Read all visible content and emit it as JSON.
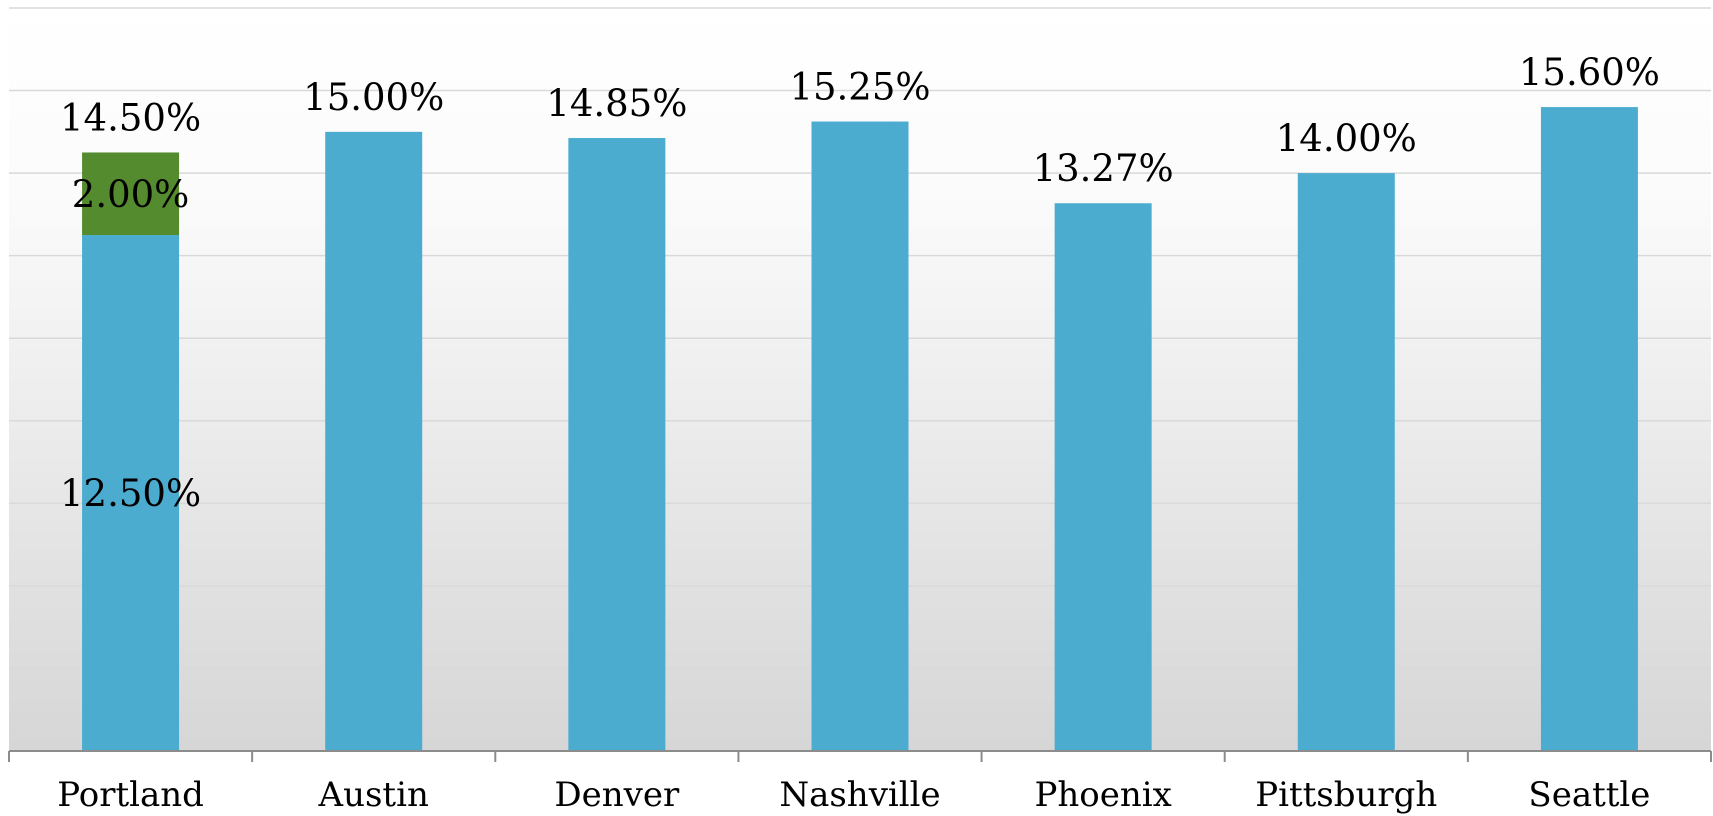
{
  "chart_data": {
    "type": "bar",
    "stacked": true,
    "categories": [
      "Portland",
      "Austin",
      "Denver",
      "Nashville",
      "Phoenix",
      "Pittsburgh",
      "Seattle"
    ],
    "series": [
      {
        "values": [
          12.5,
          15.0,
          14.85,
          15.25,
          13.27,
          14.0,
          15.6
        ],
        "color": "#4BACD0"
      },
      {
        "values": [
          2.0,
          0,
          0,
          0,
          0,
          0,
          0
        ],
        "color": "#558B2F"
      }
    ],
    "data_labels": {
      "segments": [
        {
          "category": "Portland",
          "series": 0,
          "text": "12.50%"
        },
        {
          "category": "Portland",
          "series": 1,
          "text": "2.00%"
        }
      ],
      "totals": [
        "14.50%",
        "15.00%",
        "14.85%",
        "15.25%",
        "13.27%",
        "14.00%",
        "15.60%"
      ]
    },
    "ylim": [
      0,
      18
    ],
    "grid": true,
    "background": "gradient-light-gray",
    "title": "",
    "xlabel": "",
    "ylabel": ""
  }
}
